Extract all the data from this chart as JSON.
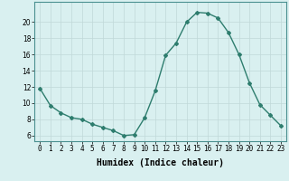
{
  "x": [
    0,
    1,
    2,
    3,
    4,
    5,
    6,
    7,
    8,
    9,
    10,
    11,
    12,
    13,
    14,
    15,
    16,
    17,
    18,
    19,
    20,
    21,
    22,
    23
  ],
  "y": [
    11.8,
    9.7,
    8.8,
    8.2,
    8.0,
    7.4,
    7.0,
    6.6,
    6.0,
    6.1,
    8.2,
    11.5,
    15.9,
    17.4,
    20.0,
    21.2,
    21.1,
    20.5,
    18.7,
    16.0,
    12.5,
    9.8,
    8.5,
    7.2
  ],
  "line_color": "#2e7d6e",
  "marker": "D",
  "marker_size": 2.0,
  "line_width": 1.0,
  "xlabel": "Humidex (Indice chaleur)",
  "xlabel_fontsize": 7,
  "xlabel_bold": true,
  "background_color": "#d9f0f0",
  "grid_color": "#c0d8d8",
  "xtick_labels": [
    "0",
    "1",
    "2",
    "3",
    "4",
    "5",
    "6",
    "7",
    "8",
    "9",
    "10",
    "11",
    "12",
    "13",
    "14",
    "15",
    "16",
    "17",
    "18",
    "19",
    "20",
    "21",
    "22",
    "23"
  ],
  "ytick_values": [
    6,
    8,
    10,
    12,
    14,
    16,
    18,
    20
  ],
  "ylim": [
    5.3,
    22.5
  ],
  "xlim": [
    -0.5,
    23.5
  ],
  "tick_fontsize": 5.5,
  "spine_color": "#4a9090"
}
